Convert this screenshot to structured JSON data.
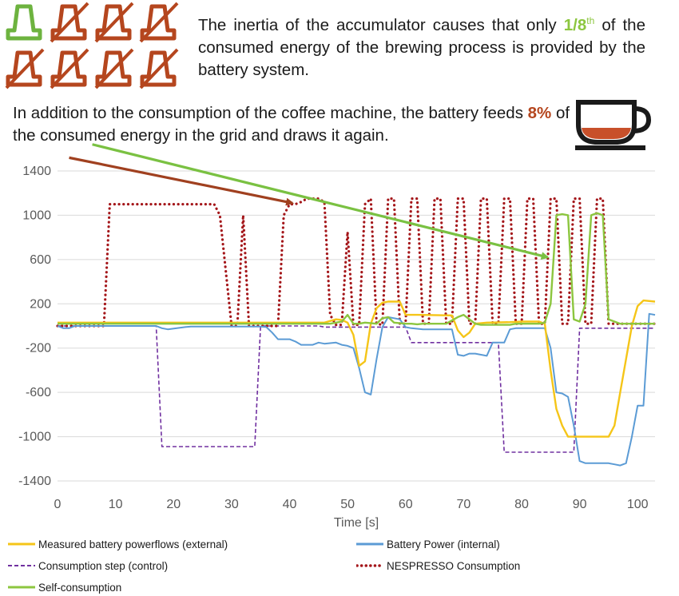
{
  "caption": {
    "part1": "The inertia of the accumulator causes that only ",
    "fraction": "1/8",
    "fraction_sup": "th",
    "part2": " of the consumed energy of the brewing process is provided by the battery system."
  },
  "note": {
    "part1": "In addition to the consumption of the coffee machine, the battery feeds ",
    "percent": "8%",
    "part2": " of the consumed energy in the grid and draws it again."
  },
  "icons": {
    "capsule_total": 8,
    "capsule_green_count": 1,
    "capsule_green": "#6db33f",
    "capsule_red": "#b5461e",
    "cup": "coffee-cup-icon"
  },
  "colors": {
    "measured": "#f5c518",
    "battery": "#5b9bd5",
    "control": "#7030a0",
    "nespresso": "#a4161a",
    "self": "#8cc63f",
    "arrow_red": "#a0401f",
    "arrow_green": "#7ac142"
  },
  "chart_data": {
    "type": "line",
    "title": "",
    "xlabel": "Time [s]",
    "ylabel": "",
    "xlim": [
      0,
      103
    ],
    "ylim": [
      -1400,
      1400
    ],
    "xticks": [
      0,
      10,
      20,
      30,
      40,
      50,
      60,
      70,
      80,
      90,
      100
    ],
    "yticks": [
      1400,
      1000,
      600,
      200,
      -200,
      -600,
      -1000,
      -1400
    ],
    "grid": true,
    "legend_position": "bottom",
    "series": [
      {
        "name": "Measured battery powerflows (external)",
        "key": "measured",
        "style": "solid",
        "x": [
          0,
          45,
          46,
          48,
          49,
          50,
          51,
          52,
          53,
          54,
          55,
          56,
          57,
          59,
          60,
          62,
          68,
          69,
          70,
          71,
          72,
          74,
          78,
          80,
          83,
          84,
          85,
          86,
          87,
          88,
          89,
          95,
          96,
          97,
          98,
          99,
          100,
          101,
          103
        ],
        "y": [
          30,
          30,
          30,
          60,
          55,
          30,
          -80,
          -360,
          -320,
          20,
          160,
          210,
          220,
          220,
          100,
          100,
          95,
          -40,
          -100,
          -60,
          20,
          30,
          35,
          40,
          40,
          20,
          -400,
          -750,
          -900,
          -1000,
          -1000,
          -1000,
          -900,
          -600,
          -300,
          0,
          180,
          230,
          220
        ]
      },
      {
        "name": "Battery Power (internal)",
        "key": "battery",
        "style": "solid",
        "x": [
          0,
          1,
          2,
          3,
          4,
          17,
          18,
          19,
          22,
          23,
          24,
          35,
          36,
          37,
          38,
          40,
          41,
          42,
          44,
          45,
          46,
          48,
          49,
          50,
          51,
          52,
          53,
          54,
          55,
          56,
          57,
          59,
          60,
          61,
          63,
          68,
          69,
          70,
          71,
          72,
          73,
          74,
          75,
          77,
          78,
          79,
          84,
          85,
          86,
          87,
          88,
          89,
          90,
          91,
          94,
          95,
          96,
          97,
          98,
          99,
          100,
          101,
          102,
          103
        ],
        "y": [
          0,
          -20,
          -20,
          0,
          0,
          0,
          -20,
          -30,
          -10,
          -5,
          -5,
          -5,
          -10,
          -60,
          -120,
          -120,
          -140,
          -170,
          -170,
          -150,
          -160,
          -150,
          -170,
          -180,
          -200,
          -380,
          -600,
          -620,
          -300,
          -10,
          80,
          60,
          -10,
          -20,
          -30,
          -30,
          -260,
          -270,
          -250,
          -250,
          -260,
          -270,
          -150,
          -150,
          -30,
          -20,
          -20,
          -200,
          -600,
          -610,
          -640,
          -900,
          -1220,
          -1240,
          -1240,
          -1240,
          -1250,
          -1260,
          -1240,
          -1000,
          -720,
          -720,
          110,
          100
        ]
      },
      {
        "name": "Consumption step (control)",
        "key": "control",
        "style": "dashed",
        "x": [
          0,
          17,
          18,
          34,
          35,
          45,
          46,
          60,
          61,
          76,
          77,
          89,
          90,
          103
        ],
        "y": [
          0,
          0,
          -1090,
          -1090,
          0,
          0,
          -10,
          -10,
          -150,
          -150,
          -1140,
          -1140,
          -20,
          -20
        ]
      },
      {
        "name": "NESPRESSO Consumption",
        "key": "nespresso",
        "style": "dotted",
        "x": [
          0,
          8,
          9,
          27,
          28,
          30,
          31,
          32,
          33,
          34,
          35,
          36,
          37,
          38,
          39,
          40,
          41,
          42,
          43,
          45,
          46,
          47,
          48,
          49,
          50,
          51,
          52,
          53,
          54,
          55,
          56,
          57,
          58,
          59,
          60,
          61,
          62,
          63,
          64,
          65,
          66,
          67,
          68,
          69,
          70,
          71,
          72,
          73,
          74,
          75,
          76,
          77,
          78,
          79,
          80,
          81,
          82,
          83,
          84,
          85,
          86,
          87,
          88,
          89,
          90,
          91,
          92,
          93,
          94,
          95,
          96,
          97,
          98,
          99,
          100,
          101,
          103
        ],
        "y": [
          0,
          0,
          1100,
          1100,
          1000,
          0,
          0,
          1000,
          0,
          0,
          0,
          0,
          0,
          0,
          1000,
          1100,
          1100,
          1120,
          1150,
          1150,
          1120,
          100,
          10,
          10,
          850,
          10,
          10,
          1100,
          1150,
          20,
          10,
          1150,
          1150,
          20,
          20,
          1150,
          1150,
          20,
          20,
          1150,
          1150,
          20,
          20,
          1150,
          1150,
          20,
          20,
          1150,
          1150,
          20,
          20,
          1150,
          1150,
          20,
          20,
          1150,
          1150,
          20,
          20,
          1150,
          1150,
          20,
          20,
          1150,
          1150,
          20,
          20,
          1150,
          1150,
          20,
          20,
          20,
          20,
          20,
          20,
          20,
          20
        ]
      },
      {
        "name": "Self-consumption",
        "key": "self",
        "style": "solid",
        "x": [
          0,
          46,
          47,
          48,
          49,
          50,
          51,
          52,
          53,
          55,
          56,
          57,
          58,
          60,
          61,
          62,
          63,
          67,
          68,
          69,
          70,
          71,
          72,
          73,
          78,
          79,
          83,
          84,
          85,
          86,
          87,
          88,
          89,
          90,
          91,
          92,
          93,
          94,
          95,
          96,
          97,
          98,
          103
        ],
        "y": [
          20,
          20,
          20,
          30,
          40,
          100,
          20,
          20,
          30,
          20,
          70,
          80,
          30,
          20,
          20,
          15,
          20,
          20,
          50,
          80,
          100,
          60,
          20,
          10,
          10,
          20,
          20,
          30,
          200,
          1000,
          1010,
          1000,
          60,
          40,
          200,
          1000,
          1020,
          1000,
          60,
          40,
          20,
          20,
          20
        ]
      }
    ],
    "annotations": [
      {
        "type": "arrow",
        "color_key": "arrow_red",
        "from": [
          2.0,
          1520
        ],
        "to": [
          40.5,
          1110
        ]
      },
      {
        "type": "arrow",
        "color_key": "arrow_green",
        "from": [
          6.0,
          1640
        ],
        "to": [
          84.5,
          620
        ]
      }
    ]
  }
}
